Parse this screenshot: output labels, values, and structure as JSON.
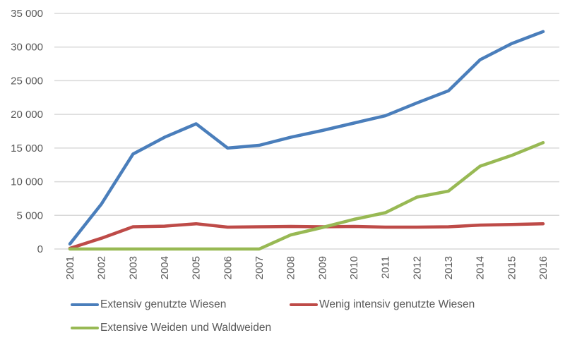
{
  "chart_data": {
    "type": "line",
    "title": "",
    "xlabel": "",
    "ylabel": "",
    "ylim": [
      0,
      35000
    ],
    "yticks": [
      0,
      5000,
      10000,
      15000,
      20000,
      25000,
      30000,
      35000
    ],
    "ytick_labels": [
      "0",
      "5 000",
      "10 000",
      "15 000",
      "20 000",
      "25 000",
      "30 000",
      "35 000"
    ],
    "grid": true,
    "legend_position": "bottom",
    "categories": [
      "2001",
      "2002",
      "2003",
      "2004",
      "2005",
      "2006",
      "2007",
      "2008",
      "2009",
      "2010",
      "2011",
      "2012",
      "2013",
      "2014",
      "2015",
      "2016"
    ],
    "series": [
      {
        "name": "Extensiv genutzte Wiesen",
        "color": "#4A7EBB",
        "values": [
          750,
          6700,
          14100,
          16600,
          18600,
          15000,
          15400,
          16600,
          17600,
          18700,
          19800,
          21700,
          23500,
          28100,
          30500,
          32300
        ]
      },
      {
        "name": "Wenig intensiv genutzte Wiesen",
        "color": "#BE4B48",
        "values": [
          100,
          1600,
          3300,
          3400,
          3750,
          3250,
          3300,
          3350,
          3300,
          3350,
          3250,
          3250,
          3300,
          3550,
          3650,
          3750
        ]
      },
      {
        "name": "Extensive Weiden und Waldweiden",
        "color": "#98B954",
        "values": [
          0,
          0,
          0,
          0,
          0,
          0,
          0,
          2100,
          3200,
          4400,
          5400,
          7700,
          8600,
          12300,
          13900,
          15800
        ]
      }
    ]
  },
  "legend": {
    "items": [
      {
        "label": "Extensiv genutzte Wiesen",
        "color": "#4A7EBB"
      },
      {
        "label": "Wenig intensiv genutzte Wiesen",
        "color": "#BE4B48"
      },
      {
        "label": "Extensive Weiden und Waldweiden",
        "color": "#98B954"
      }
    ]
  },
  "style": {
    "grid_color": "#D9D9D9",
    "text_color": "#595959"
  }
}
